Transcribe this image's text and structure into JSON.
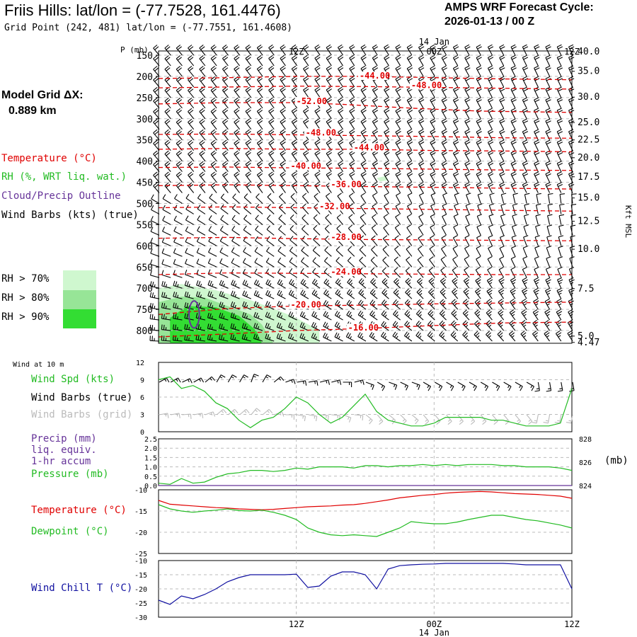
{
  "header": {
    "title": "Friis Hills:  lat/lon = (-77.7528, 161.4476)",
    "grid_point": "Grid Point (242, 481) lat/lon = (-77.7551, 161.4608)",
    "cycle_label": "AMPS WRF Forecast Cycle:",
    "cycle_value": "2026-01-13 / 00  Z",
    "model_grid_label": "Model Grid ΔX:",
    "model_grid_value": "0.889 km"
  },
  "colors": {
    "temperature": "#e00000",
    "rh": "#22bb22",
    "cloud": "#663399",
    "wind_chill": "#1010a0",
    "rh70": "#cff7cf",
    "rh80": "#97e597",
    "rh90": "#33dd33"
  },
  "legend": {
    "temperature": "Temperature (°C)",
    "rh": "RH (%, WRT liq. wat.)",
    "cloud": "Cloud/Precip Outline",
    "wind": "Wind Barbs (kts) (true)",
    "rh70": "RH > 70%",
    "rh80": "RH > 80%",
    "rh90": "RH > 90%"
  },
  "panel_labels": {
    "wind10m": "Wind at 10 m",
    "wind_spd": "Wind Spd (kts)",
    "wind_true": "Wind Barbs (true)",
    "wind_grid": "Wind Barbs (grid)",
    "precip1": "Precip (mm)",
    "precip2": "liq. equiv.",
    "precip3": "1-hr accum",
    "pressure": "Pressure (mb)",
    "pressure_unit": "(mb)",
    "temperature": "Temperature (°C)",
    "dewpoint": "Dewpoint (°C)",
    "wind_chill": "Wind Chill T (°C)"
  },
  "chart_data": [
    {
      "type": "cross-section",
      "name": "upper_air",
      "x_hours": [
        0,
        12,
        24,
        36
      ],
      "time_labels": [
        "12Z",
        "00Z",
        "12Z"
      ],
      "date_label": "14 Jan",
      "y_axis_label": "P (mb)",
      "pressure_levels": [
        150,
        200,
        250,
        300,
        350,
        400,
        450,
        500,
        550,
        600,
        650,
        700,
        750,
        800
      ],
      "ylim": [
        140,
        830
      ],
      "right_axis_label": "Kft MSL",
      "right_axis_values": [
        "40.0",
        "35.0",
        "30.0",
        "25.0",
        "22.5",
        "20.0",
        "17.5",
        "15.0",
        "12.5",
        "10.0",
        "7.5",
        "5.0",
        "4.47"
      ],
      "right_axis_pressures": [
        142,
        188,
        249,
        309,
        350,
        392,
        437,
        487,
        542,
        608,
        701,
        813,
        828
      ],
      "temperature_contours": [
        {
          "label": "-44.00",
          "points": [
            [
              0,
              205
            ],
            [
              6,
              203
            ],
            [
              12,
              200
            ],
            [
              18,
              200
            ],
            [
              24,
              203
            ],
            [
              30,
              206
            ],
            [
              36,
              208
            ]
          ],
          "label_at": [
            17.5,
            202
          ]
        },
        {
          "label": "-48.00",
          "points": [
            [
              0,
              227
            ],
            [
              6,
              225
            ],
            [
              12,
              223
            ],
            [
              18,
              224
            ],
            [
              24,
              226
            ],
            [
              30,
              228
            ],
            [
              36,
              230
            ]
          ],
          "label_at": [
            22,
            224
          ]
        },
        {
          "label": "-52.00",
          "points": [
            [
              0,
              265
            ],
            [
              6,
              262
            ],
            [
              12,
              262
            ],
            [
              16,
              266
            ],
            [
              22,
              275
            ],
            [
              28,
              282
            ],
            [
              36,
              285
            ]
          ],
          "label_at": [
            12,
            262
          ]
        },
        {
          "label": "-48.00",
          "points": [
            [
              0,
              337
            ],
            [
              6,
              336
            ],
            [
              12,
              338
            ],
            [
              18,
              340
            ],
            [
              24,
              342
            ],
            [
              30,
              345
            ],
            [
              36,
              346
            ]
          ],
          "label_at": [
            12.8,
            336
          ]
        },
        {
          "label": "-44.00",
          "points": [
            [
              0,
              372
            ],
            [
              6,
              370
            ],
            [
              12,
              372
            ],
            [
              18,
              372
            ],
            [
              24,
              375
            ],
            [
              30,
              376
            ],
            [
              36,
              378
            ]
          ],
          "label_at": [
            17,
            371
          ]
        },
        {
          "label": "-40.00",
          "points": [
            [
              0,
              415
            ],
            [
              6,
              414
            ],
            [
              12,
              416
            ],
            [
              18,
              417
            ],
            [
              24,
              419
            ],
            [
              30,
              421
            ],
            [
              36,
              422
            ]
          ],
          "label_at": [
            11.5,
            415
          ]
        },
        {
          "label": "-36.00",
          "points": [
            [
              0,
              458
            ],
            [
              6,
              456
            ],
            [
              12,
              458
            ],
            [
              18,
              460
            ],
            [
              24,
              462
            ],
            [
              30,
              464
            ],
            [
              36,
              466
            ]
          ],
          "label_at": [
            15,
            458
          ]
        },
        {
          "label": "-32.00",
          "points": [
            [
              0,
              510
            ],
            [
              6,
              508
            ],
            [
              12,
              510
            ],
            [
              18,
              512
            ],
            [
              24,
              514
            ],
            [
              30,
              516
            ],
            [
              36,
              518
            ]
          ],
          "label_at": [
            14,
            510
          ]
        },
        {
          "label": "-28.00",
          "points": [
            [
              0,
              582
            ],
            [
              6,
              580
            ],
            [
              12,
              583
            ],
            [
              18,
              585
            ],
            [
              24,
              586
            ],
            [
              30,
              587
            ],
            [
              36,
              588
            ]
          ],
          "label_at": [
            15,
            583
          ]
        },
        {
          "label": "-24.00",
          "points": [
            [
              0,
              668
            ],
            [
              6,
              664
            ],
            [
              12,
              665
            ],
            [
              18,
              666
            ],
            [
              24,
              667
            ],
            [
              30,
              668
            ],
            [
              36,
              668
            ]
          ],
          "label_at": [
            15,
            665
          ]
        },
        {
          "label": "-20.00",
          "points": [
            [
              0,
              762
            ],
            [
              6,
              748
            ],
            [
              12,
              742
            ],
            [
              18,
              740
            ],
            [
              24,
              737
            ],
            [
              30,
              735
            ],
            [
              36,
              733
            ]
          ],
          "label_at": [
            11.5,
            742
          ]
        },
        {
          "label": "-16.00",
          "points": [
            [
              0,
              815
            ],
            [
              6,
              808
            ],
            [
              12,
              800
            ],
            [
              18,
              795
            ],
            [
              24,
              788
            ],
            [
              30,
              782
            ],
            [
              36,
              780
            ]
          ],
          "label_at": [
            16.5,
            797
          ]
        }
      ],
      "rh_regions": [
        {
          "level": 70,
          "points": [
            [
              0,
              700
            ],
            [
              2,
              690
            ],
            [
              5,
              705
            ],
            [
              8,
              728
            ],
            [
              10,
              748
            ],
            [
              12,
              770
            ],
            [
              14,
              800
            ],
            [
              14,
              830
            ],
            [
              0,
              830
            ]
          ]
        },
        {
          "level": 80,
          "points": [
            [
              0,
              733
            ],
            [
              2,
              720
            ],
            [
              4,
              722
            ],
            [
              6,
              742
            ],
            [
              8,
              762
            ],
            [
              9,
              786
            ],
            [
              10,
              830
            ],
            [
              0,
              830
            ]
          ]
        },
        {
          "level": 90,
          "points": [
            [
              1,
              770
            ],
            [
              2.5,
              742
            ],
            [
              5,
              745
            ],
            [
              7,
              765
            ],
            [
              8.5,
              800
            ],
            [
              9,
              830
            ],
            [
              1,
              830
            ]
          ]
        },
        {
          "level": 70,
          "points": [
            [
              19,
              440
            ],
            [
              19.8,
              435
            ],
            [
              20,
              445
            ],
            [
              19.3,
              448
            ]
          ]
        }
      ],
      "cloud_outline": {
        "center": [
          3.1,
          762
        ],
        "radius_hours": 0.45,
        "radius_mb": 32
      }
    },
    {
      "type": "line",
      "name": "wind_speed_10m",
      "ylabel": "kts",
      "ylim": [
        0,
        12
      ],
      "yticks": [
        0,
        3,
        6,
        9,
        12
      ],
      "x_hours": [
        0,
        1,
        2,
        3,
        4,
        5,
        6,
        7,
        8,
        9,
        10,
        11,
        12,
        13,
        14,
        15,
        16,
        17,
        18,
        19,
        20,
        21,
        22,
        23,
        24,
        25,
        26,
        27,
        28,
        29,
        30,
        31,
        32,
        33,
        34,
        35,
        36
      ],
      "wind_speed": [
        9.0,
        9.5,
        7.5,
        8.0,
        7.0,
        5.0,
        4.0,
        2.0,
        0.7,
        2.0,
        2.5,
        4.0,
        6.0,
        5.0,
        3.0,
        1.5,
        2.5,
        4.5,
        6.5,
        3.5,
        2.0,
        1.5,
        1.0,
        1.0,
        1.5,
        2.5,
        2.5,
        2.5,
        2.5,
        2.0,
        2.0,
        1.5,
        1.0,
        1.0,
        1.0,
        1.5,
        7.5
      ],
      "barb_dir_true": [
        330,
        330,
        335,
        330,
        320,
        300,
        300,
        300,
        290,
        300,
        320,
        340,
        350,
        350,
        345,
        345,
        0,
        345,
        20,
        30,
        20,
        25,
        20,
        30,
        30,
        30,
        30,
        30,
        30,
        30,
        30,
        30,
        30,
        80,
        80,
        80,
        80
      ]
    },
    {
      "type": "line",
      "name": "precip_pressure",
      "precip_ylim": [
        0,
        2.5
      ],
      "precip_yticks": [
        "0.0",
        "0.5",
        "1.0",
        "1.5",
        "2.0",
        "2.5"
      ],
      "pressure_ylim": [
        824,
        828
      ],
      "pressure_yticks": [
        "824",
        "826",
        "828"
      ],
      "x_hours": [
        0,
        1,
        2,
        3,
        4,
        5,
        6,
        7,
        8,
        9,
        10,
        11,
        12,
        13,
        14,
        15,
        16,
        17,
        18,
        19,
        20,
        21,
        22,
        23,
        24,
        25,
        26,
        27,
        28,
        29,
        30,
        31,
        32,
        33,
        34,
        35,
        36
      ],
      "precip": [
        0,
        0,
        0,
        0,
        0,
        0,
        0,
        0,
        0,
        0,
        0,
        0,
        0,
        0,
        0,
        0,
        0,
        0,
        0,
        0,
        0,
        0,
        0,
        0,
        0,
        0,
        0,
        0,
        0,
        0,
        0,
        0,
        0,
        0,
        0,
        0,
        0
      ],
      "pressure": [
        824.2,
        824.1,
        824.6,
        824.2,
        824.3,
        824.7,
        825.0,
        825.1,
        825.3,
        825.3,
        825.2,
        825.3,
        825.5,
        825.4,
        825.6,
        825.6,
        825.6,
        825.5,
        825.7,
        825.7,
        825.6,
        825.7,
        825.7,
        825.8,
        825.7,
        825.8,
        825.7,
        825.8,
        825.8,
        825.8,
        825.7,
        825.7,
        825.6,
        825.6,
        825.6,
        825.5,
        825.3
      ]
    },
    {
      "type": "line",
      "name": "temperature_dewpoint",
      "ylim": [
        -25,
        -10
      ],
      "yticks": [
        "-10",
        "-15",
        "-20",
        "-25"
      ],
      "x_hours": [
        0,
        1,
        2,
        3,
        4,
        5,
        6,
        7,
        8,
        9,
        10,
        11,
        12,
        13,
        14,
        15,
        16,
        17,
        18,
        19,
        20,
        21,
        22,
        23,
        24,
        25,
        26,
        27,
        28,
        29,
        30,
        31,
        32,
        33,
        34,
        35,
        36
      ],
      "temperature": [
        -12.5,
        -13.4,
        -13.6,
        -13.8,
        -14.0,
        -14.2,
        -14.3,
        -14.5,
        -14.6,
        -14.7,
        -14.6,
        -14.4,
        -14.2,
        -14.0,
        -13.9,
        -13.8,
        -13.6,
        -13.5,
        -13.2,
        -12.8,
        -12.4,
        -11.9,
        -11.6,
        -11.3,
        -11.1,
        -10.8,
        -10.6,
        -10.5,
        -10.4,
        -10.5,
        -10.7,
        -10.9,
        -11.0,
        -11.1,
        -11.3,
        -11.5,
        -12.0
      ],
      "dewpoint": [
        -13.5,
        -14.5,
        -15.0,
        -15.3,
        -15.0,
        -14.8,
        -14.5,
        -14.9,
        -15.0,
        -14.8,
        -15.3,
        -16.0,
        -17.0,
        -19.0,
        -20.0,
        -20.6,
        -20.8,
        -20.6,
        -20.8,
        -21.0,
        -20.0,
        -19.0,
        -17.5,
        -17.8,
        -18.0,
        -18.0,
        -17.6,
        -17.0,
        -16.5,
        -16.0,
        -16.0,
        -16.5,
        -17.0,
        -17.3,
        -17.8,
        -18.3,
        -19.0
      ]
    },
    {
      "type": "line",
      "name": "wind_chill",
      "ylim": [
        -30,
        -10
      ],
      "yticks": [
        "-10",
        "-15",
        "-20",
        "-25",
        "-30"
      ],
      "x_hours": [
        0,
        1,
        2,
        3,
        4,
        5,
        6,
        7,
        8,
        9,
        10,
        11,
        12,
        13,
        14,
        15,
        16,
        17,
        18,
        19,
        20,
        21,
        22,
        23,
        24,
        25,
        26,
        27,
        28,
        29,
        30,
        31,
        32,
        33,
        34,
        35,
        36
      ],
      "wind_chill": [
        -24.0,
        -25.5,
        -22.5,
        -23.5,
        -22.0,
        -20.0,
        -17.5,
        -16.0,
        -15.0,
        -15.0,
        -15.0,
        -15.0,
        -14.8,
        -19.5,
        -19.0,
        -15.5,
        -14.0,
        -14.0,
        -15.0,
        -20.0,
        -13.0,
        -11.8,
        -11.5,
        -11.3,
        -11.2,
        -11.0,
        -11.0,
        -11.0,
        -11.0,
        -11.0,
        -11.0,
        -11.2,
        -11.5,
        -11.5,
        -11.5,
        -11.5,
        -20.0
      ]
    }
  ]
}
